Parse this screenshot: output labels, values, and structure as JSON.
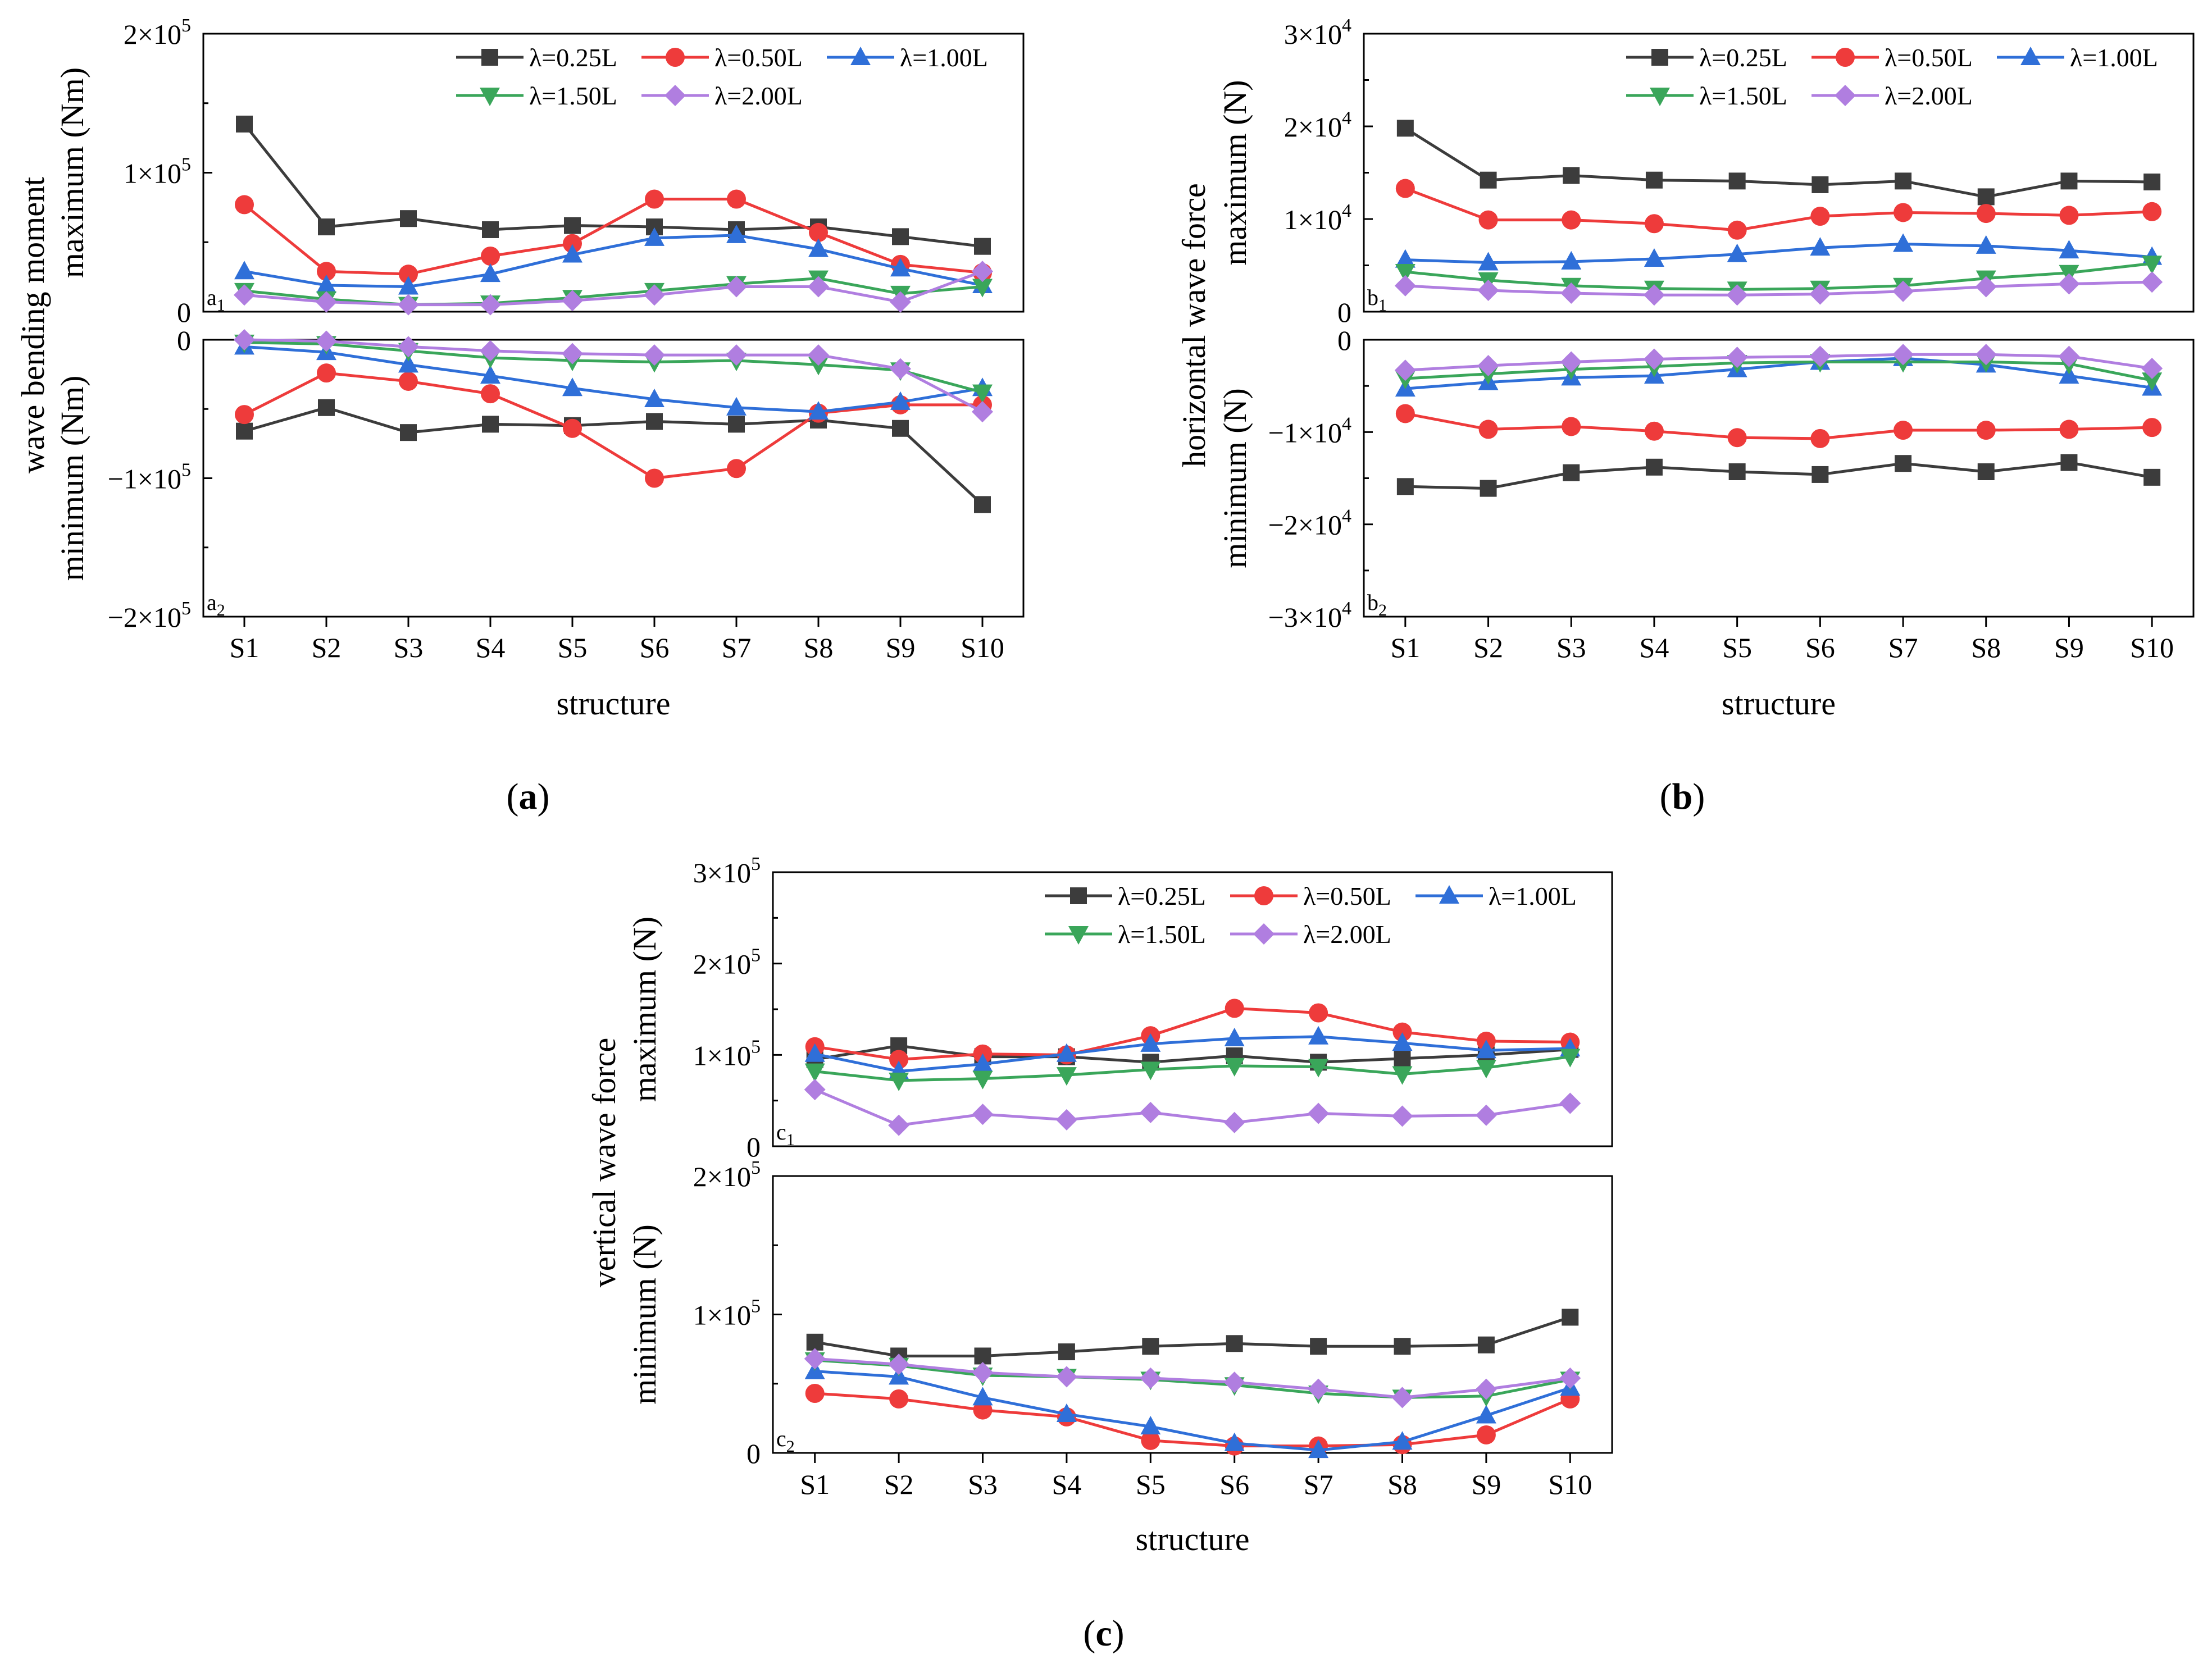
{
  "chart_data": [
    {
      "type": "line",
      "id": "a",
      "caption": "a",
      "xlabel": "structure",
      "ylabel_group": "wave bending moment",
      "categories": [
        "S1",
        "S2",
        "S3",
        "S4",
        "S5",
        "S6",
        "S7",
        "S8",
        "S9",
        "S10"
      ],
      "panels": [
        {
          "id": "a1",
          "tag": "a",
          "tag_sub": "1",
          "ylabel": "maximum (Nm)",
          "ylim": [
            0,
            200000
          ],
          "yticks": [
            {
              "value": 0,
              "mant": "0",
              "exp": ""
            },
            {
              "value": 100000,
              "mant": "1×10",
              "exp": "5"
            },
            {
              "value": 200000,
              "mant": "2×10",
              "exp": "5"
            }
          ],
          "series": [
            {
              "name": "λ=0.25L",
              "values": [
                135000,
                61000,
                67000,
                59000,
                62000,
                61000,
                59000,
                61000,
                54000,
                47000
              ]
            },
            {
              "name": "λ=0.50L",
              "values": [
                77000,
                29000,
                27000,
                40000,
                49000,
                81000,
                81000,
                57000,
                34000,
                28000
              ]
            },
            {
              "name": "λ=1.00L",
              "values": [
                29000,
                19000,
                18000,
                27000,
                41000,
                53000,
                55000,
                45000,
                31000,
                19000
              ]
            },
            {
              "name": "λ=1.50L",
              "values": [
                15000,
                9000,
                5000,
                6000,
                10000,
                15000,
                20000,
                24000,
                13000,
                18000
              ]
            },
            {
              "name": "λ=2.00L",
              "values": [
                12000,
                7000,
                5000,
                5000,
                8000,
                12000,
                18000,
                18000,
                7000,
                29000
              ]
            }
          ]
        },
        {
          "id": "a2",
          "tag": "a",
          "tag_sub": "2",
          "ylabel": "minimum (Nm)",
          "ylim": [
            -200000,
            0
          ],
          "yticks": [
            {
              "value": 0,
              "mant": "0",
              "exp": ""
            },
            {
              "value": -100000,
              "mant": "−1×10",
              "exp": "5"
            },
            {
              "value": -200000,
              "mant": "−2×10",
              "exp": "5"
            }
          ],
          "series": [
            {
              "name": "λ=0.25L",
              "values": [
                -66000,
                -49000,
                -67000,
                -61000,
                -62000,
                -59000,
                -61000,
                -58000,
                -64000,
                -119000
              ]
            },
            {
              "name": "λ=0.50L",
              "values": [
                -54000,
                -24000,
                -30000,
                -39000,
                -64000,
                -100000,
                -93000,
                -53000,
                -47000,
                -47000
              ]
            },
            {
              "name": "λ=1.00L",
              "values": [
                -5000,
                -9000,
                -18000,
                -26000,
                -35000,
                -43000,
                -49000,
                -52000,
                -45000,
                -35000
              ]
            },
            {
              "name": "λ=1.50L",
              "values": [
                -2000,
                -3000,
                -8000,
                -13000,
                -15000,
                -16000,
                -15000,
                -18000,
                -22000,
                -38000
              ]
            },
            {
              "name": "λ=2.00L",
              "values": [
                0,
                -1000,
                -5000,
                -8000,
                -10000,
                -11000,
                -11000,
                -11000,
                -21000,
                -52000
              ]
            }
          ]
        }
      ]
    },
    {
      "type": "line",
      "id": "b",
      "caption": "b",
      "xlabel": "structure",
      "ylabel_group": "horizontal wave force",
      "categories": [
        "S1",
        "S2",
        "S3",
        "S4",
        "S5",
        "S6",
        "S7",
        "S8",
        "S9",
        "S10"
      ],
      "panels": [
        {
          "id": "b1",
          "tag": "b",
          "tag_sub": "1",
          "ylabel": "maximum (N)",
          "ylim": [
            0,
            30000
          ],
          "yticks": [
            {
              "value": 0,
              "mant": "0",
              "exp": ""
            },
            {
              "value": 10000,
              "mant": "1×10",
              "exp": "4"
            },
            {
              "value": 20000,
              "mant": "2×10",
              "exp": "4"
            },
            {
              "value": 30000,
              "mant": "3×10",
              "exp": "4"
            }
          ],
          "series": [
            {
              "name": "λ=0.25L",
              "values": [
                19800,
                14200,
                14700,
                14200,
                14100,
                13700,
                14100,
                12400,
                14100,
                14000
              ]
            },
            {
              "name": "λ=0.50L",
              "values": [
                13300,
                9900,
                9900,
                9500,
                8800,
                10300,
                10700,
                10600,
                10400,
                10800
              ]
            },
            {
              "name": "λ=1.00L",
              "values": [
                5600,
                5300,
                5400,
                5700,
                6200,
                6900,
                7300,
                7100,
                6600,
                5900
              ]
            },
            {
              "name": "λ=1.50L",
              "values": [
                4300,
                3400,
                2800,
                2500,
                2400,
                2500,
                2800,
                3600,
                4200,
                5200
              ]
            },
            {
              "name": "λ=2.00L",
              "values": [
                2800,
                2300,
                2000,
                1800,
                1800,
                1900,
                2200,
                2700,
                3000,
                3200
              ]
            }
          ]
        },
        {
          "id": "b2",
          "tag": "b",
          "tag_sub": "2",
          "ylabel": "minimum (N)",
          "ylim": [
            -30000,
            0
          ],
          "yticks": [
            {
              "value": 0,
              "mant": "0",
              "exp": ""
            },
            {
              "value": -10000,
              "mant": "−1×10",
              "exp": "4"
            },
            {
              "value": -20000,
              "mant": "−2×10",
              "exp": "4"
            },
            {
              "value": -30000,
              "mant": "−3×10",
              "exp": "4"
            }
          ],
          "series": [
            {
              "name": "λ=0.25L",
              "values": [
                -15900,
                -16100,
                -14400,
                -13800,
                -14300,
                -14600,
                -13400,
                -14300,
                -13300,
                -14900
              ]
            },
            {
              "name": "λ=0.50L",
              "values": [
                -8000,
                -9700,
                -9400,
                -9900,
                -10600,
                -10700,
                -9800,
                -9800,
                -9700,
                -9500
              ]
            },
            {
              "name": "λ=1.00L",
              "values": [
                -5300,
                -4600,
                -4100,
                -3900,
                -3200,
                -2400,
                -2000,
                -2700,
                -3900,
                -5200
              ]
            },
            {
              "name": "λ=1.50L",
              "values": [
                -4200,
                -3700,
                -3200,
                -2900,
                -2500,
                -2400,
                -2400,
                -2400,
                -2600,
                -4400
              ]
            },
            {
              "name": "λ=2.00L",
              "values": [
                -3300,
                -2800,
                -2400,
                -2100,
                -1900,
                -1800,
                -1600,
                -1600,
                -1800,
                -3100
              ]
            }
          ]
        }
      ]
    },
    {
      "type": "line",
      "id": "c",
      "caption": "c",
      "xlabel": "structure",
      "ylabel_group": "vertical wave force",
      "categories": [
        "S1",
        "S2",
        "S3",
        "S4",
        "S5",
        "S6",
        "S7",
        "S8",
        "S9",
        "S10"
      ],
      "panels": [
        {
          "id": "c1",
          "tag": "c",
          "tag_sub": "1",
          "ylabel": "maximum (N)",
          "ylim": [
            0,
            300000
          ],
          "yticks": [
            {
              "value": 0,
              "mant": "0",
              "exp": ""
            },
            {
              "value": 100000,
              "mant": "1×10",
              "exp": "5"
            },
            {
              "value": 200000,
              "mant": "2×10",
              "exp": "5"
            },
            {
              "value": 300000,
              "mant": "3×10",
              "exp": "5"
            }
          ],
          "series": [
            {
              "name": "λ=0.25L",
              "values": [
                95000,
                110000,
                98000,
                98000,
                92000,
                99000,
                92000,
                96000,
                100000,
                106000
              ]
            },
            {
              "name": "λ=0.50L",
              "values": [
                109000,
                95000,
                101000,
                100000,
                121000,
                151000,
                146000,
                125000,
                115000,
                114000
              ]
            },
            {
              "name": "λ=1.00L",
              "values": [
                101000,
                82000,
                90000,
                101000,
                112000,
                118000,
                120000,
                113000,
                105000,
                107000
              ]
            },
            {
              "name": "λ=1.50L",
              "values": [
                82000,
                72000,
                74000,
                78000,
                84000,
                88000,
                87000,
                79000,
                86000,
                98000
              ]
            },
            {
              "name": "λ=2.00L",
              "values": [
                62000,
                23000,
                35000,
                29000,
                37000,
                26000,
                36000,
                33000,
                34000,
                47000
              ]
            }
          ]
        },
        {
          "id": "c2",
          "tag": "c",
          "tag_sub": "2",
          "ylabel": "minimum (N)",
          "ylim": [
            0,
            200000
          ],
          "yticks": [
            {
              "value": 0,
              "mant": "0",
              "exp": ""
            },
            {
              "value": 100000,
              "mant": "1×10",
              "exp": "5"
            },
            {
              "value": 200000,
              "mant": "2×10",
              "exp": "5"
            }
          ],
          "series": [
            {
              "name": "λ=0.25L",
              "values": [
                80000,
                70000,
                70000,
                73000,
                77000,
                79000,
                77000,
                77000,
                78000,
                98000
              ]
            },
            {
              "name": "λ=0.50L",
              "values": [
                43000,
                39000,
                31000,
                26000,
                9000,
                5000,
                5000,
                6000,
                13000,
                39000
              ]
            },
            {
              "name": "λ=1.00L",
              "values": [
                59000,
                55000,
                40000,
                28000,
                19000,
                7000,
                2000,
                8000,
                27000,
                47000
              ]
            },
            {
              "name": "λ=1.50L",
              "values": [
                67000,
                63000,
                56000,
                55000,
                53000,
                49000,
                43000,
                40000,
                41000,
                53000
              ]
            },
            {
              "name": "λ=2.00L",
              "values": [
                68000,
                64000,
                58000,
                55000,
                54000,
                51000,
                46000,
                40000,
                46000,
                54000
              ]
            }
          ]
        }
      ]
    }
  ],
  "series_styles": [
    {
      "name": "λ=0.25L",
      "color": "#3c3c3c",
      "marker": "square"
    },
    {
      "name": "λ=0.50L",
      "color": "#ee3b3b",
      "marker": "circle"
    },
    {
      "name": "λ=1.00L",
      "color": "#2f6fd8",
      "marker": "triangle-up"
    },
    {
      "name": "λ=1.50L",
      "color": "#3aa65a",
      "marker": "triangle-down"
    },
    {
      "name": "λ=2.00L",
      "color": "#b07ee0",
      "marker": "diamond"
    }
  ],
  "legend": {
    "placement": "top-right",
    "rows": 2
  }
}
